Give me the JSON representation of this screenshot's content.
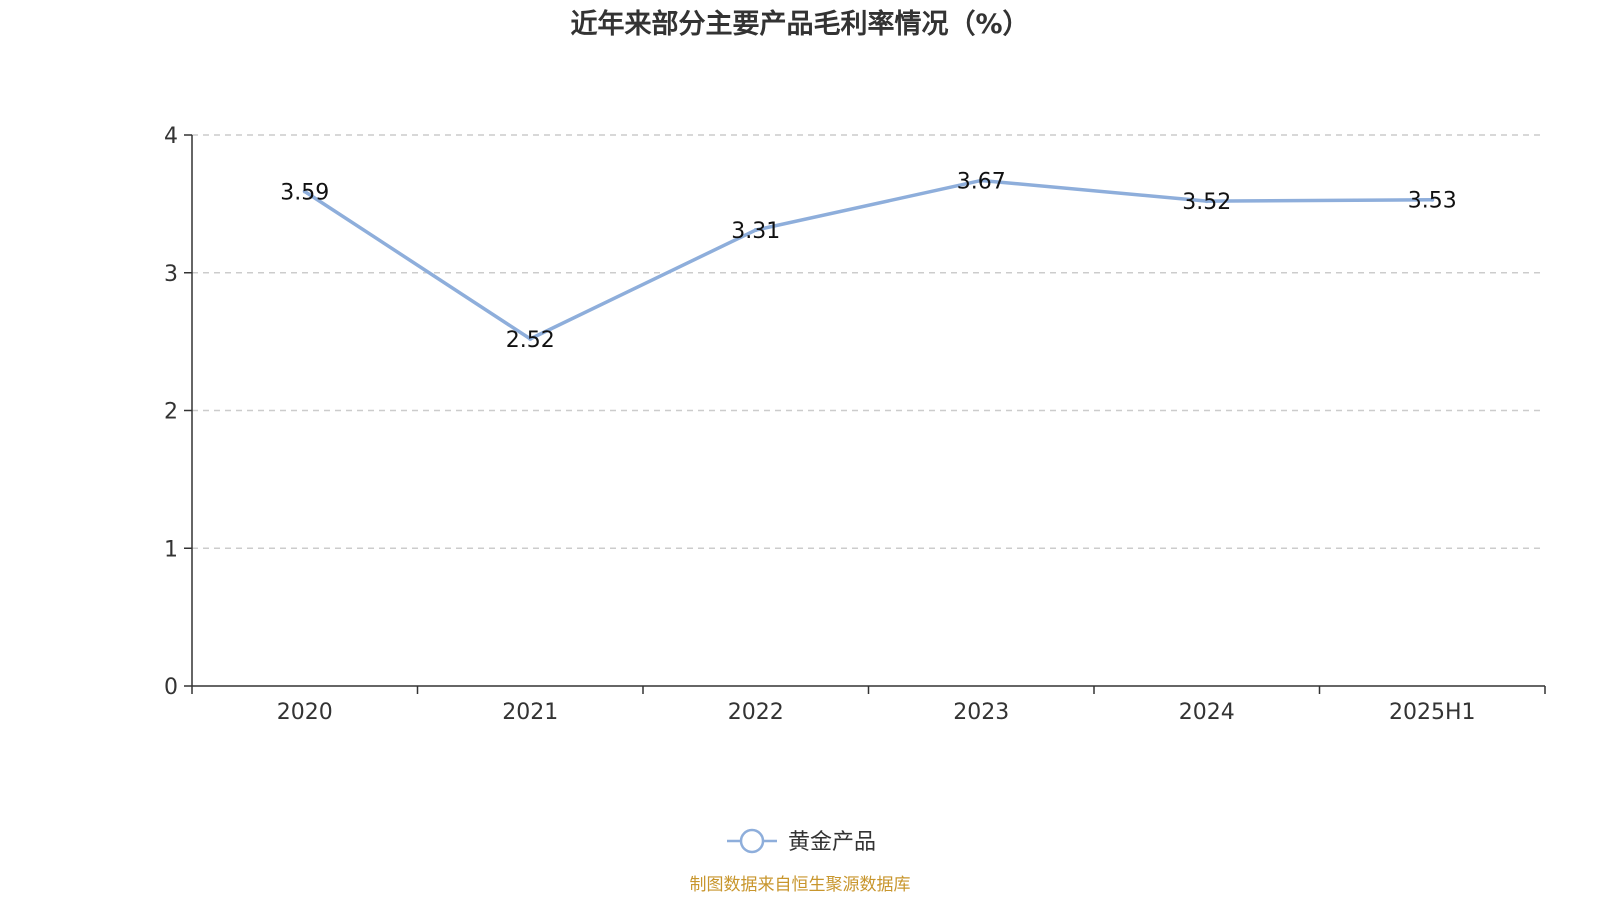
{
  "chart_data": {
    "type": "line",
    "title": "近年来部分主要产品毛利率情况（%）",
    "categories": [
      "2020",
      "2021",
      "2022",
      "2023",
      "2024",
      "2025H1"
    ],
    "series": [
      {
        "name": "黄金产品",
        "values": [
          3.59,
          2.52,
          3.31,
          3.67,
          3.52,
          3.53
        ],
        "color": "#8eaedb"
      }
    ],
    "ylim": [
      0,
      4
    ],
    "yticks": [
      "0",
      "1",
      "2",
      "3",
      "4"
    ],
    "grid": true,
    "legend_position": "bottom-center",
    "xlabel": "",
    "ylabel": ""
  },
  "source": "制图数据来自恒生聚源数据库",
  "colors": {
    "axis": "#333333",
    "grid": "#cccccc",
    "source": "#c8962d"
  }
}
